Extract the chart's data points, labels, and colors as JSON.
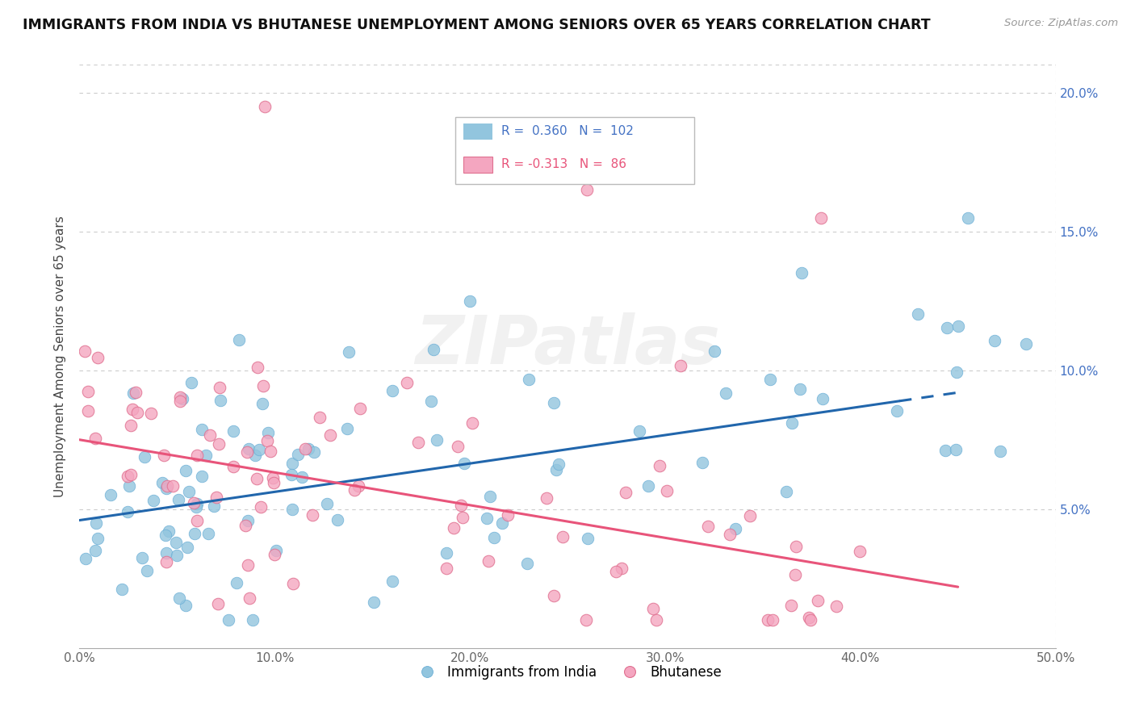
{
  "title": "IMMIGRANTS FROM INDIA VS BHUTANESE UNEMPLOYMENT AMONG SENIORS OVER 65 YEARS CORRELATION CHART",
  "source": "Source: ZipAtlas.com",
  "ylabel": "Unemployment Among Seniors over 65 years",
  "xlim": [
    0.0,
    0.5
  ],
  "ylim": [
    0.0,
    0.21
  ],
  "xtick_labels": [
    "0.0%",
    "10.0%",
    "20.0%",
    "30.0%",
    "40.0%",
    "50.0%"
  ],
  "xtick_vals": [
    0.0,
    0.1,
    0.2,
    0.3,
    0.4,
    0.5
  ],
  "ytick_labels": [
    "5.0%",
    "10.0%",
    "15.0%",
    "20.0%"
  ],
  "ytick_vals": [
    0.05,
    0.1,
    0.15,
    0.2
  ],
  "blue_R": 0.36,
  "blue_N": 102,
  "pink_R": -0.313,
  "pink_N": 86,
  "blue_color": "#92c5de",
  "pink_color": "#f4a6c0",
  "blue_line_color": "#2166ac",
  "pink_line_color": "#e8547a",
  "watermark": "ZIPatlas",
  "legend_blue_label": "Immigrants from India",
  "legend_pink_label": "Bhutanese",
  "blue_trend_x0": 0.0,
  "blue_trend_y0": 0.046,
  "blue_trend_x1": 0.45,
  "blue_trend_y1": 0.092,
  "blue_trend_solid_end": 0.42,
  "pink_trend_x0": 0.0,
  "pink_trend_y0": 0.075,
  "pink_trend_x1": 0.45,
  "pink_trend_y1": 0.022
}
